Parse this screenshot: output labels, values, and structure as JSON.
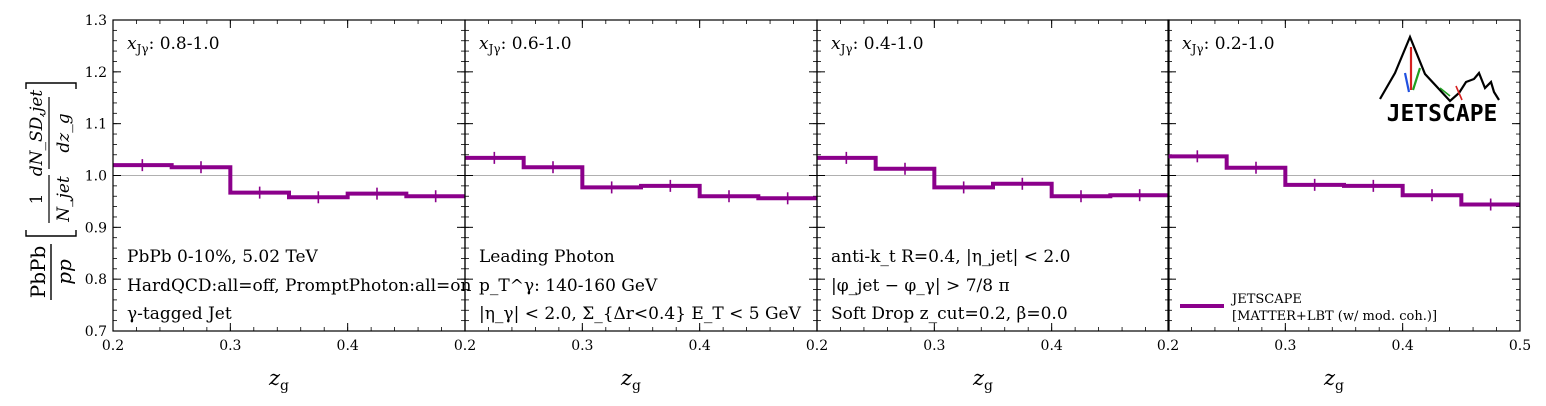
{
  "chart_data": {
    "type": "step",
    "y_label": "PbPb/pp [ (1/N_jet) dN_SD,jet / dz_g ]",
    "y_label_parts": {
      "ratio_num": "PbPb",
      "ratio_den": "pp",
      "frac1_num": "1",
      "frac1_den": "N_jet",
      "frac2_num": "dN_SD,jet",
      "frac2_den": "dz_g"
    },
    "ylim": [
      0.7,
      1.3
    ],
    "y_ticks": [
      "0.7",
      "0.8",
      "0.9",
      "1.0",
      "1.1",
      "1.2",
      "1.3"
    ],
    "y_tick_values": [
      0.7,
      0.8,
      0.9,
      1.0,
      1.1,
      1.2,
      1.3
    ],
    "reference_line": 1.0,
    "x_label": "z_g",
    "x_ticks_default": [
      "0.2",
      "0.3",
      "0.4"
    ],
    "x_ticks_last": [
      "0.2",
      "0.3",
      "0.4",
      "0.5"
    ],
    "xlim": [
      0.2,
      0.5
    ],
    "bin_edges": [
      0.2,
      0.25,
      0.3,
      0.35,
      0.4,
      0.45,
      0.5
    ],
    "panels": [
      {
        "label": "x_Jγ: 0.8-1.0",
        "values": [
          1.02,
          1.016,
          0.967,
          0.958,
          0.965,
          0.96
        ],
        "annotations": [
          "PbPb 0-10%, 5.02 TeV",
          "HardQCD:all=off, PromptPhoton:all=on",
          "γ-tagged Jet"
        ]
      },
      {
        "label": "x_Jγ: 0.6-1.0",
        "values": [
          1.034,
          1.016,
          0.977,
          0.98,
          0.96,
          0.956
        ],
        "annotations": [
          "Leading Photon",
          "p_T^γ: 140-160 GeV",
          "|η_γ| < 2.0, Σ_{Δr<0.4} E_T < 5 GeV"
        ]
      },
      {
        "label": "x_Jγ: 0.4-1.0",
        "values": [
          1.034,
          1.013,
          0.977,
          0.984,
          0.96,
          0.962
        ],
        "annotations": [
          "anti-k_t R=0.4, |η_jet| < 2.0",
          "|φ_jet − φ_γ| > 7/8 π",
          "Soft Drop z_cut=0.2, β=0.0"
        ]
      },
      {
        "label": "x_Jγ: 0.2-1.0",
        "values": [
          1.037,
          1.015,
          0.982,
          0.98,
          0.962,
          0.944
        ],
        "annotations": []
      }
    ],
    "series": [
      {
        "name": "JETSCAPE [MATTER+LBT (w/ mod. coh.)]",
        "color": "#8b008b"
      }
    ],
    "legend": {
      "line1": "JETSCAPE",
      "line2": "[MATTER+LBT (w/ mod. coh.)]",
      "placement": "bottom-right of last panel"
    },
    "logo_text": "JETSCAPE"
  }
}
